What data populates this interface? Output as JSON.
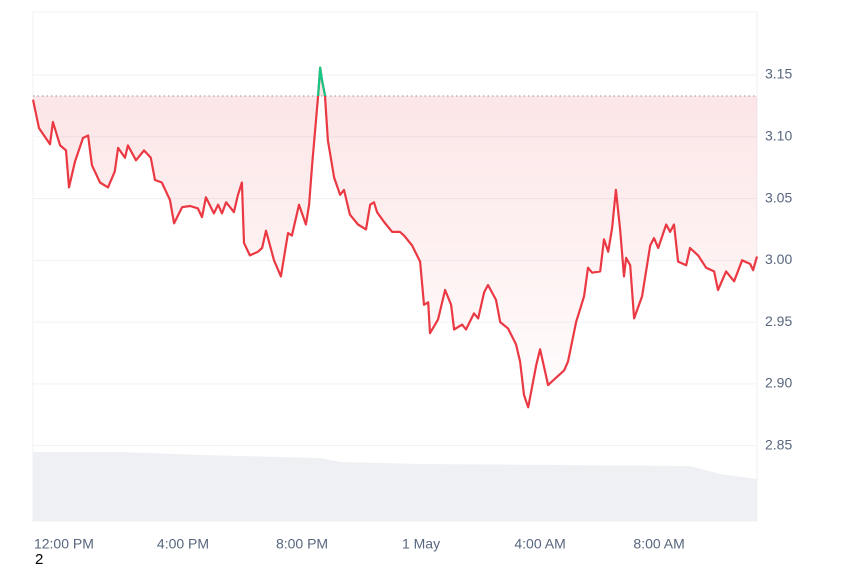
{
  "chart_data": {
    "type": "line",
    "x": [
      -1.04,
      -0.84,
      -0.47,
      -0.37,
      -0.13,
      0.07,
      0.17,
      0.37,
      0.64,
      0.81,
      0.94,
      1.21,
      1.48,
      1.71,
      1.82,
      2.05,
      2.15,
      2.42,
      2.69,
      2.92,
      3.06,
      3.29,
      3.56,
      3.7,
      3.97,
      4.24,
      4.5,
      4.64,
      4.77,
      5.04,
      5.18,
      5.31,
      5.45,
      5.71,
      5.85,
      5.98,
      6.05,
      6.25,
      6.52,
      6.66,
      6.79,
      7.06,
      7.29,
      7.53,
      7.66,
      7.9,
      8.13,
      8.24,
      8.34,
      8.54,
      8.61,
      8.67,
      8.77,
      8.87,
      9.08,
      9.28,
      9.41,
      9.61,
      9.88,
      10.15,
      10.29,
      10.42,
      10.52,
      10.76,
      11.03,
      11.29,
      11.43,
      11.7,
      11.97,
      12.1,
      12.24,
      12.3,
      12.57,
      12.81,
      13.01,
      13.11,
      13.38,
      13.51,
      13.78,
      13.92,
      14.12,
      14.25,
      14.52,
      14.66,
      14.92,
      15.19,
      15.33,
      15.46,
      15.6,
      15.87,
      16.0,
      16.27,
      16.54,
      16.81,
      16.94,
      17.21,
      17.48,
      17.61,
      17.75,
      18.02,
      18.15,
      18.29,
      18.42,
      18.55,
      18.69,
      18.82,
      18.89,
      19.03,
      19.16,
      19.43,
      19.7,
      19.83,
      19.97,
      20.24,
      20.37,
      20.5,
      20.64,
      20.91,
      21.04,
      21.31,
      21.58,
      21.85,
      21.98,
      22.25,
      22.52,
      22.79,
      23.06,
      23.16,
      23.29
    ],
    "series": [
      {
        "color": "#ea3943",
        "above_color": "#16c784",
        "values": [
          3.13,
          3.107,
          3.094,
          3.112,
          3.093,
          3.089,
          3.059,
          3.08,
          3.099,
          3.101,
          3.077,
          3.063,
          3.059,
          3.072,
          3.091,
          3.083,
          3.093,
          3.081,
          3.089,
          3.083,
          3.065,
          3.063,
          3.049,
          3.03,
          3.043,
          3.044,
          3.042,
          3.035,
          3.051,
          3.038,
          3.045,
          3.038,
          3.047,
          3.039,
          3.053,
          3.063,
          3.014,
          3.004,
          3.007,
          3.01,
          3.024,
          3.0,
          2.987,
          3.022,
          3.02,
          3.045,
          3.029,
          3.045,
          3.077,
          3.133,
          3.156,
          3.146,
          3.134,
          3.097,
          3.067,
          3.053,
          3.057,
          3.037,
          3.029,
          3.025,
          3.045,
          3.047,
          3.039,
          3.031,
          3.023,
          3.023,
          3.02,
          3.012,
          2.999,
          2.964,
          2.966,
          2.941,
          2.952,
          2.976,
          2.964,
          2.944,
          2.948,
          2.944,
          2.957,
          2.953,
          2.974,
          2.98,
          2.968,
          2.95,
          2.945,
          2.932,
          2.918,
          2.891,
          2.881,
          2.915,
          2.928,
          2.899,
          2.905,
          2.911,
          2.918,
          2.95,
          2.971,
          2.994,
          2.99,
          2.991,
          3.017,
          3.007,
          3.026,
          3.057,
          3.025,
          2.987,
          3.002,
          2.996,
          2.953,
          2.971,
          3.012,
          3.018,
          3.01,
          3.029,
          3.023,
          3.029,
          2.999,
          2.996,
          3.01,
          3.004,
          2.994,
          2.991,
          2.976,
          2.991,
          2.983,
          3.0,
          2.997,
          2.992,
          3.003
        ]
      }
    ],
    "baseline": 3.133,
    "xlim": [
      -1.04,
      23.29
    ],
    "xticks": [
      {
        "value": 0,
        "label": "12:00 PM"
      },
      {
        "value": 4,
        "label": "4:00 PM"
      },
      {
        "value": 8,
        "label": "8:00 PM"
      },
      {
        "value": 12,
        "label": "1 May"
      },
      {
        "value": 16,
        "label": "4:00 AM"
      },
      {
        "value": 20,
        "label": "8:00 AM"
      }
    ],
    "ylim": [
      2.789,
      3.201
    ],
    "yticks": [
      2.85,
      {
        "value": 2.9,
        "label": "2.90"
      },
      2.95,
      {
        "value": 3.0,
        "label": "3.00"
      },
      3.05,
      {
        "value": 3.1,
        "label": "3.10"
      },
      3.15
    ],
    "grid": true
  },
  "footnote": "2"
}
